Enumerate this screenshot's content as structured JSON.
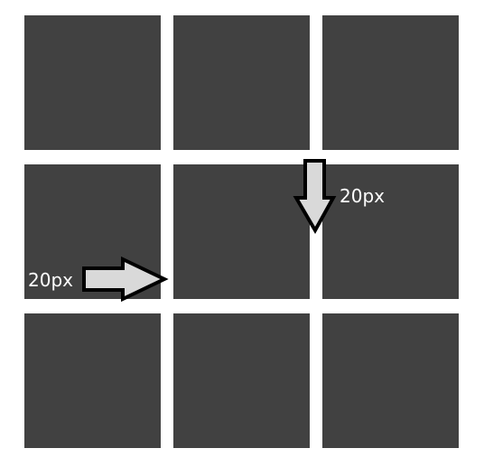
{
  "grid": {
    "rows": 3,
    "columns": 3,
    "tile_color": "#414141",
    "background_color": "#ffffff"
  },
  "annotations": {
    "horizontal_gap_label": "20px",
    "vertical_gap_label": "20px",
    "arrow_fill": "#d9d9d9",
    "arrow_stroke": "#000000"
  }
}
